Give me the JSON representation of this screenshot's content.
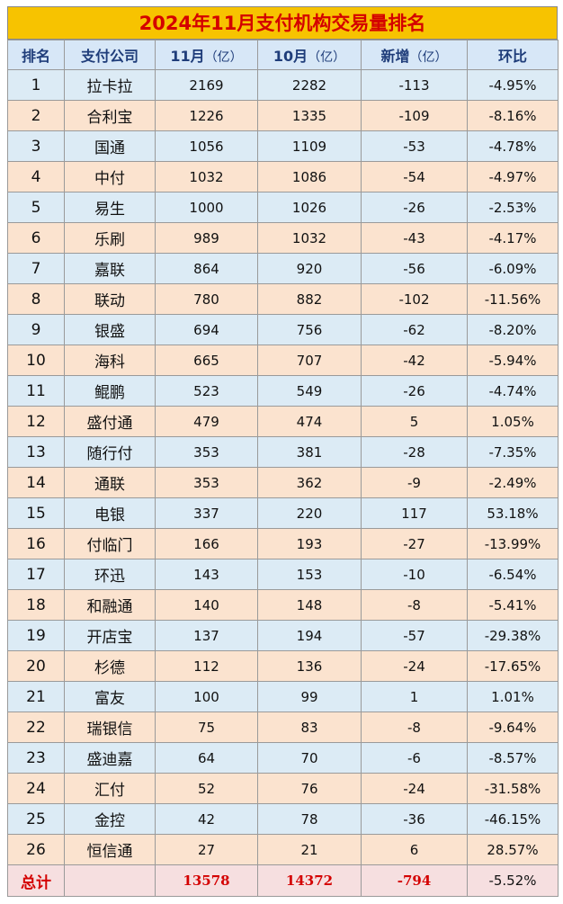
{
  "title": "2024年11月支付机构交易量排名",
  "headers": {
    "rank": "排名",
    "company": "支付公司",
    "nov": "11月",
    "nov_unit": "（亿）",
    "oct": "10月",
    "oct_unit": "（亿）",
    "delta": "新增",
    "delta_unit": "（亿）",
    "mom": "环比"
  },
  "rows": [
    {
      "rank": "1",
      "name": "拉卡拉",
      "nov": "2169",
      "oct": "2282",
      "delta": "-113",
      "mom": "-4.95%"
    },
    {
      "rank": "2",
      "name": "合利宝",
      "nov": "1226",
      "oct": "1335",
      "delta": "-109",
      "mom": "-8.16%"
    },
    {
      "rank": "3",
      "name": "国通",
      "nov": "1056",
      "oct": "1109",
      "delta": "-53",
      "mom": "-4.78%"
    },
    {
      "rank": "4",
      "name": "中付",
      "nov": "1032",
      "oct": "1086",
      "delta": "-54",
      "mom": "-4.97%"
    },
    {
      "rank": "5",
      "name": "易生",
      "nov": "1000",
      "oct": "1026",
      "delta": "-26",
      "mom": "-2.53%"
    },
    {
      "rank": "6",
      "name": "乐刷",
      "nov": "989",
      "oct": "1032",
      "delta": "-43",
      "mom": "-4.17%"
    },
    {
      "rank": "7",
      "name": "嘉联",
      "nov": "864",
      "oct": "920",
      "delta": "-56",
      "mom": "-6.09%"
    },
    {
      "rank": "8",
      "name": "联动",
      "nov": "780",
      "oct": "882",
      "delta": "-102",
      "mom": "-11.56%"
    },
    {
      "rank": "9",
      "name": "银盛",
      "nov": "694",
      "oct": "756",
      "delta": "-62",
      "mom": "-8.20%"
    },
    {
      "rank": "10",
      "name": "海科",
      "nov": "665",
      "oct": "707",
      "delta": "-42",
      "mom": "-5.94%"
    },
    {
      "rank": "11",
      "name": "鲲鹏",
      "nov": "523",
      "oct": "549",
      "delta": "-26",
      "mom": "-4.74%"
    },
    {
      "rank": "12",
      "name": "盛付通",
      "nov": "479",
      "oct": "474",
      "delta": "5",
      "mom": "1.05%"
    },
    {
      "rank": "13",
      "name": "随行付",
      "nov": "353",
      "oct": "381",
      "delta": "-28",
      "mom": "-7.35%"
    },
    {
      "rank": "14",
      "name": "通联",
      "nov": "353",
      "oct": "362",
      "delta": "-9",
      "mom": "-2.49%"
    },
    {
      "rank": "15",
      "name": "电银",
      "nov": "337",
      "oct": "220",
      "delta": "117",
      "mom": "53.18%"
    },
    {
      "rank": "16",
      "name": "付临门",
      "nov": "166",
      "oct": "193",
      "delta": "-27",
      "mom": "-13.99%"
    },
    {
      "rank": "17",
      "name": "环迅",
      "nov": "143",
      "oct": "153",
      "delta": "-10",
      "mom": "-6.54%"
    },
    {
      "rank": "18",
      "name": "和融通",
      "nov": "140",
      "oct": "148",
      "delta": "-8",
      "mom": "-5.41%"
    },
    {
      "rank": "19",
      "name": "开店宝",
      "nov": "137",
      "oct": "194",
      "delta": "-57",
      "mom": "-29.38%"
    },
    {
      "rank": "20",
      "name": "杉德",
      "nov": "112",
      "oct": "136",
      "delta": "-24",
      "mom": "-17.65%"
    },
    {
      "rank": "21",
      "name": "富友",
      "nov": "100",
      "oct": "99",
      "delta": "1",
      "mom": "1.01%"
    },
    {
      "rank": "22",
      "name": "瑞银信",
      "nov": "75",
      "oct": "83",
      "delta": "-8",
      "mom": "-9.64%"
    },
    {
      "rank": "23",
      "name": "盛迪嘉",
      "nov": "64",
      "oct": "70",
      "delta": "-6",
      "mom": "-8.57%"
    },
    {
      "rank": "24",
      "name": "汇付",
      "nov": "52",
      "oct": "76",
      "delta": "-24",
      "mom": "-31.58%"
    },
    {
      "rank": "25",
      "name": "金控",
      "nov": "42",
      "oct": "78",
      "delta": "-36",
      "mom": "-46.15%"
    },
    {
      "rank": "26",
      "name": "恒信通",
      "nov": "27",
      "oct": "21",
      "delta": "6",
      "mom": "28.57%"
    }
  ],
  "total": {
    "label": "总计",
    "name": "",
    "nov": "13578",
    "oct": "14372",
    "delta": "-794",
    "mom": "-5.52%"
  },
  "colors": {
    "title_bg": "#f7c300",
    "title_text": "#d40000",
    "header_bg": "#d7e7f7",
    "row_odd": "#dcebf5",
    "row_even": "#fbe3cf",
    "total_bg": "#f6dfe0"
  }
}
